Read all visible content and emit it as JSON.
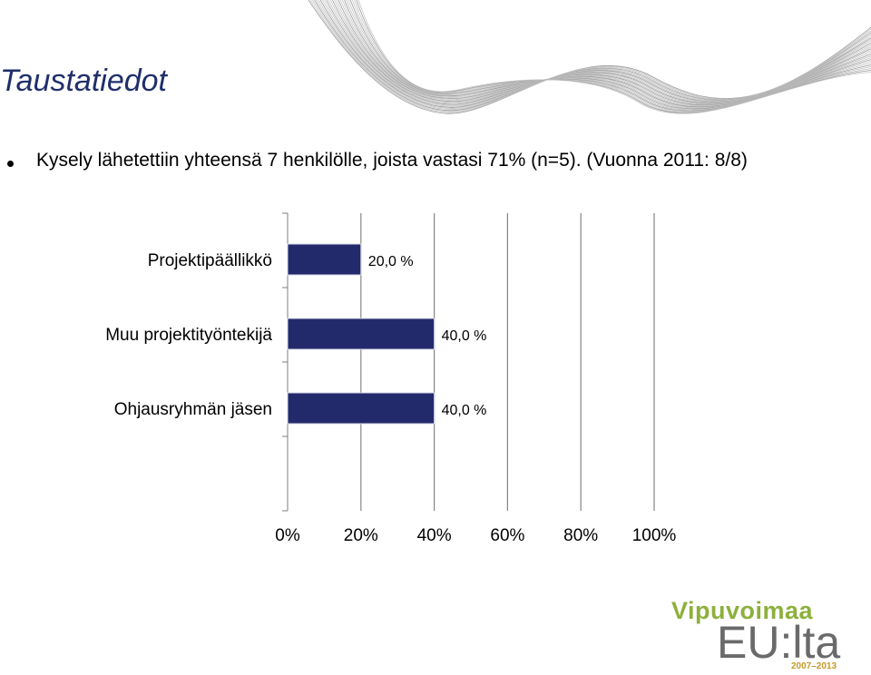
{
  "slide": {
    "title": "Taustatiedot",
    "bullet": "Kysely lähetettiin yhteensä 7 henkilölle, joista vastasi 71% (n=5). (Vuonna 2011: 8/8)"
  },
  "logo": {
    "line1": "Vipuvoimaa",
    "line2": "EU:lta",
    "years": "2007–2013"
  },
  "colors": {
    "bar": "#232a6c",
    "title": "#1f2f6b",
    "logo_green": "#8db03c",
    "logo_gray": "#6a6a6a"
  },
  "chart_data": {
    "type": "bar",
    "orientation": "horizontal",
    "categories": [
      "Projektipäällikkö",
      "Muu projektityöntekijä",
      "Ohjausryhmän jäsen"
    ],
    "values": [
      20.0,
      40.0,
      40.0
    ],
    "data_labels": [
      "20,0 %",
      "40,0 %",
      "40,0 %"
    ],
    "xlim": [
      0,
      100
    ],
    "x_ticks": [
      "0%",
      "20%",
      "40%",
      "60%",
      "80%",
      "100%"
    ],
    "grid": true,
    "title": "",
    "xlabel": "",
    "ylabel": ""
  }
}
